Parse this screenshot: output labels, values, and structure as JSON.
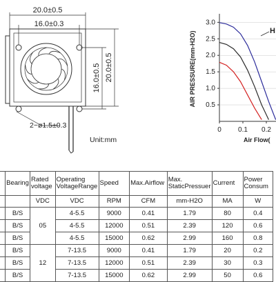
{
  "drawing": {
    "dim_outer_width": "20.0±0.5",
    "dim_hole_spacing_width": "16.0±0.3",
    "dim_hole_spacing_height": "16.0±0.5",
    "dim_outer_height": "20.0±0.5",
    "dim_holes": "2−ø1.5±0.3",
    "unit_label": "Unit:mm"
  },
  "chart_data": {
    "type": "line",
    "ylabel": "AIR PRESSURE(mm-H2O)",
    "xlabel": "Air Flow(",
    "yticks": [
      "0.5",
      "1.0",
      "1.5",
      "2.0",
      "2.5",
      "3.0"
    ],
    "xticks": [
      "0",
      "0.1",
      "0.2"
    ],
    "ylim": [
      0.0,
      3.3
    ],
    "xlim": [
      0.0,
      0.3
    ],
    "annotations": [
      "H"
    ],
    "series": [
      {
        "color": "#2a2a9a",
        "x": [
          0.0,
          0.03,
          0.06,
          0.09,
          0.12,
          0.15,
          0.18,
          0.21,
          0.24
        ],
        "y": [
          2.99,
          2.95,
          2.85,
          2.65,
          2.3,
          1.8,
          1.2,
          0.6,
          0.05
        ]
      },
      {
        "color": "#2a2a2a",
        "x": [
          0.0,
          0.03,
          0.06,
          0.09,
          0.12,
          0.15,
          0.18,
          0.21
        ],
        "y": [
          2.39,
          2.33,
          2.2,
          1.95,
          1.55,
          1.05,
          0.5,
          0.05
        ]
      },
      {
        "color": "#d42020",
        "x": [
          0.0,
          0.03,
          0.06,
          0.09,
          0.12,
          0.15,
          0.18
        ],
        "y": [
          1.79,
          1.7,
          1.5,
          1.2,
          0.8,
          0.4,
          0.05
        ]
      }
    ]
  },
  "table": {
    "headers": [
      "",
      "Bearing",
      "Rated voltage",
      "Operating VoltageRange",
      "Speed",
      "Max.Airflow",
      "Max. StaticPressuer",
      "Current",
      "Power Consum"
    ],
    "units": [
      "",
      "",
      "VDC",
      "VDC",
      "RPM",
      "CFM",
      "mm-H2O",
      "MA",
      "W"
    ],
    "rows": [
      [
        "",
        "B/S",
        "",
        "4-5.5",
        "9000",
        "0.41",
        "1.79",
        "80",
        "0.4"
      ],
      [
        "",
        "B/S",
        "05",
        "4-5.5",
        "12000",
        "0.51",
        "2.39",
        "120",
        "0.6"
      ],
      [
        "",
        "B/S",
        "",
        "4-5.5",
        "15000",
        "0.62",
        "2.99",
        "160",
        "0.8"
      ],
      [
        "",
        "B/S",
        "",
        "7-13.5",
        "9000",
        "0.41",
        "1.79",
        "20",
        "0.2"
      ],
      [
        "",
        "B/S",
        "12",
        "7-13.5",
        "12000",
        "0.51",
        "2.39",
        "30",
        "0.3"
      ],
      [
        "",
        "B/S",
        "",
        "7-13.5",
        "15000",
        "0.62",
        "2.99",
        "50",
        "0.6"
      ]
    ]
  }
}
